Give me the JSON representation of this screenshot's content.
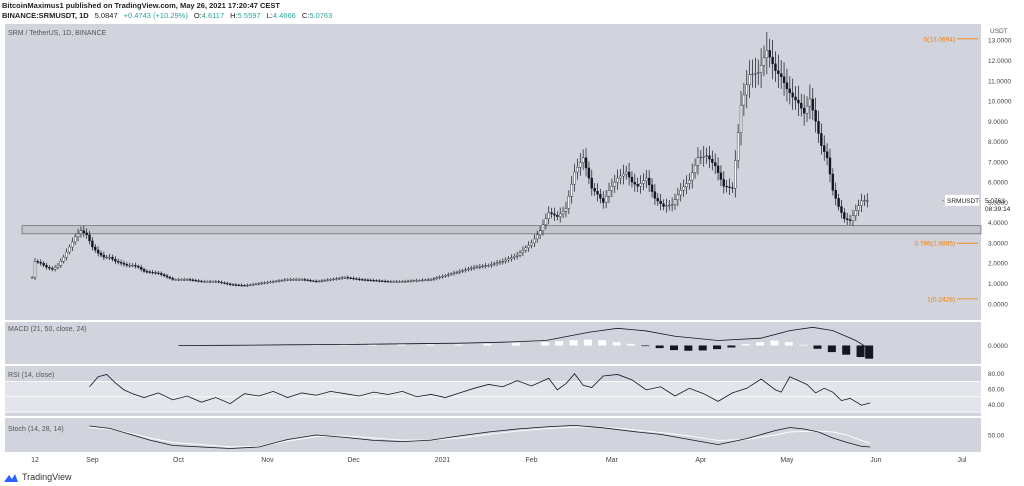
{
  "header": {
    "line1": "BitcoinMaximus1 published on TradingView.com, May 26, 2021 17:20:47 CEST",
    "symbol": "BINANCE:SRMUSDT, 1D",
    "price": "5.0847",
    "change": "+0.4743 (+10.29%)",
    "o": "4.6117",
    "h": "5.5597",
    "l": "4.4666",
    "c": "5.0763"
  },
  "footer": {
    "brand": "TradingView"
  },
  "colors": {
    "background": "#ffffff",
    "price_pane": "#d1d4dc",
    "indicator_pane": "#d1d4dc",
    "candle": "#131722",
    "fib": "#f57c00",
    "macd_line": "#131722",
    "rsi_band": "#e3e5ea",
    "stoch_k": "#131722",
    "stoch_d": "#ffffff"
  },
  "chart_data": {
    "type": "line",
    "title": "SRM / TetherUS, 1D, BINANCE",
    "currency": "USDT",
    "symbol_label": "SRMUSDT",
    "last_price": "5.0763",
    "countdown": "08:39:14",
    "y_ticks": [
      "13.0000",
      "12.0000",
      "11.0000",
      "10.0000",
      "9.0000",
      "8.0000",
      "7.0000",
      "6.0000",
      "5.0000",
      "4.0000",
      "3.0000",
      "2.0000",
      "1.0000",
      "0.0000"
    ],
    "ylim": [
      -0.8,
      13.8
    ],
    "x_ticks": [
      "12",
      "Sep",
      "Oct",
      "Nov",
      "Dec",
      "2021",
      "Feb",
      "Mar",
      "Apr",
      "May",
      "Jun",
      "Jul"
    ],
    "x_tick_days": [
      12,
      32,
      62,
      93,
      123,
      154,
      185,
      213,
      244,
      274,
      305,
      335
    ],
    "support_zone": [
      3.45,
      3.85
    ],
    "fib_levels": [
      {
        "label": "0(13.0694)",
        "value": 13.0694
      },
      {
        "label": "0.786(2.9885)",
        "value": 2.9885
      },
      {
        "label": "1(0.2428)",
        "value": 0.2428
      }
    ],
    "price_series": {
      "name": "SRMUSDT",
      "x_days": [
        11,
        12,
        14,
        16,
        18,
        20,
        22,
        24,
        26,
        28,
        30,
        32,
        34,
        36,
        38,
        40,
        42,
        44,
        46,
        48,
        50,
        55,
        60,
        65,
        70,
        75,
        80,
        85,
        90,
        95,
        100,
        105,
        110,
        115,
        120,
        125,
        130,
        135,
        140,
        145,
        150,
        155,
        160,
        165,
        170,
        175,
        180,
        185,
        188,
        191,
        194,
        197,
        200,
        203,
        206,
        208,
        210,
        212,
        215,
        218,
        220,
        222,
        225,
        228,
        231,
        234,
        237,
        240,
        243,
        246,
        249,
        252,
        255,
        258,
        261,
        264,
        267,
        270,
        272,
        274,
        276,
        278,
        280,
        282,
        284,
        286,
        288,
        290,
        292,
        294,
        296,
        298,
        300,
        302
      ],
      "y_values": [
        1.3,
        2.1,
        2.0,
        1.8,
        1.7,
        1.9,
        2.3,
        2.8,
        3.3,
        3.6,
        3.4,
        2.8,
        2.5,
        2.3,
        2.3,
        2.1,
        2.0,
        1.9,
        1.9,
        1.8,
        1.6,
        1.5,
        1.2,
        1.2,
        1.1,
        1.1,
        0.95,
        0.9,
        1.0,
        1.1,
        1.2,
        1.2,
        1.1,
        1.2,
        1.3,
        1.2,
        1.15,
        1.1,
        1.1,
        1.15,
        1.2,
        1.4,
        1.6,
        1.8,
        1.9,
        2.1,
        2.4,
        3.0,
        3.6,
        4.5,
        4.3,
        4.7,
        6.5,
        7.2,
        5.7,
        5.4,
        5.0,
        5.6,
        6.2,
        6.5,
        6.0,
        5.8,
        6.2,
        5.2,
        4.8,
        4.9,
        5.6,
        6.1,
        7.2,
        7.3,
        6.8,
        5.8,
        5.7,
        9.8,
        11.3,
        11.4,
        12.5,
        11.5,
        11.2,
        10.6,
        10.2,
        9.9,
        9.4,
        10.1,
        9.0,
        7.8,
        7.2,
        5.6,
        4.8,
        4.2,
        4.1,
        4.6,
        5.08,
        5.08
      ]
    },
    "macd": {
      "name": "MACD (21, 50, close, 24)",
      "tick": "0.0000",
      "ylim": [
        -0.5,
        0.65
      ],
      "x_days": [
        62,
        80,
        100,
        120,
        140,
        160,
        175,
        190,
        205,
        215,
        225,
        235,
        250,
        265,
        275,
        283,
        290,
        298,
        303
      ],
      "line": [
        0,
        0.005,
        0.02,
        0.03,
        0.05,
        0.07,
        0.1,
        0.15,
        0.4,
        0.52,
        0.44,
        0.28,
        0.15,
        0.22,
        0.45,
        0.55,
        0.45,
        0.15,
        -0.12
      ],
      "hist_days": [
        100,
        110,
        120,
        130,
        140,
        150,
        160,
        170,
        180,
        190,
        195,
        200,
        205,
        210,
        215,
        220,
        225,
        230,
        235,
        240,
        245,
        250,
        255,
        260,
        265,
        270,
        275,
        280,
        285,
        290,
        295,
        300,
        303
      ],
      "hist": [
        0.03,
        0.02,
        0.02,
        0.03,
        0.04,
        0.03,
        0.03,
        0.05,
        0.07,
        0.1,
        0.13,
        0.16,
        0.18,
        0.16,
        0.1,
        0.05,
        -0.02,
        -0.08,
        -0.14,
        -0.16,
        -0.15,
        -0.11,
        -0.06,
        0.04,
        0.1,
        0.15,
        0.1,
        0.02,
        -0.1,
        -0.2,
        -0.28,
        -0.35,
        -0.4
      ]
    },
    "rsi": {
      "name": "RSI (14, close)",
      "ticks": [
        "80.00",
        "60.00",
        "40.00"
      ],
      "ylim": [
        25,
        90
      ],
      "band": [
        30,
        70
      ],
      "x_days": [
        31,
        34,
        37,
        40,
        43,
        46,
        50,
        55,
        60,
        65,
        70,
        75,
        80,
        85,
        90,
        95,
        100,
        105,
        110,
        115,
        120,
        125,
        130,
        135,
        140,
        145,
        150,
        155,
        160,
        165,
        170,
        175,
        180,
        185,
        188,
        191,
        194,
        197,
        200,
        203,
        206,
        210,
        215,
        220,
        225,
        230,
        235,
        240,
        245,
        250,
        255,
        260,
        265,
        270,
        272,
        275,
        278,
        281,
        284,
        287,
        290,
        293,
        296,
        300,
        303
      ],
      "values": [
        63,
        76,
        79,
        68,
        59,
        54,
        49,
        55,
        46,
        51,
        43,
        49,
        41,
        54,
        51,
        57,
        49,
        55,
        52,
        57,
        54,
        51,
        56,
        53,
        57,
        50,
        53,
        49,
        55,
        61,
        66,
        63,
        71,
        64,
        69,
        74,
        59,
        67,
        80,
        65,
        62,
        77,
        79,
        72,
        59,
        63,
        51,
        61,
        54,
        44,
        55,
        61,
        73,
        59,
        56,
        76,
        71,
        66,
        55,
        61,
        56,
        45,
        48,
        39,
        42
      ]
    },
    "stoch": {
      "name": "Stoch (14, 28, 14)",
      "tick": "50.00",
      "ylim": [
        0,
        100
      ],
      "x_days": [
        31,
        38,
        45,
        52,
        60,
        70,
        80,
        90,
        100,
        110,
        120,
        130,
        140,
        150,
        160,
        170,
        180,
        190,
        200,
        210,
        220,
        230,
        240,
        250,
        260,
        270,
        275,
        280,
        285,
        290,
        295,
        300,
        303
      ],
      "k": [
        80,
        72,
        53,
        33,
        15,
        10,
        5,
        10,
        35,
        50,
        42,
        32,
        28,
        33,
        47,
        60,
        70,
        77,
        82,
        74,
        62,
        52,
        35,
        18,
        38,
        65,
        75,
        70,
        60,
        40,
        25,
        12,
        10
      ],
      "d": [
        75,
        70,
        57,
        40,
        25,
        18,
        10,
        12,
        30,
        45,
        47,
        40,
        33,
        33,
        40,
        52,
        63,
        71,
        77,
        76,
        68,
        58,
        47,
        32,
        35,
        50,
        60,
        62,
        63,
        60,
        50,
        32,
        22
      ]
    }
  }
}
